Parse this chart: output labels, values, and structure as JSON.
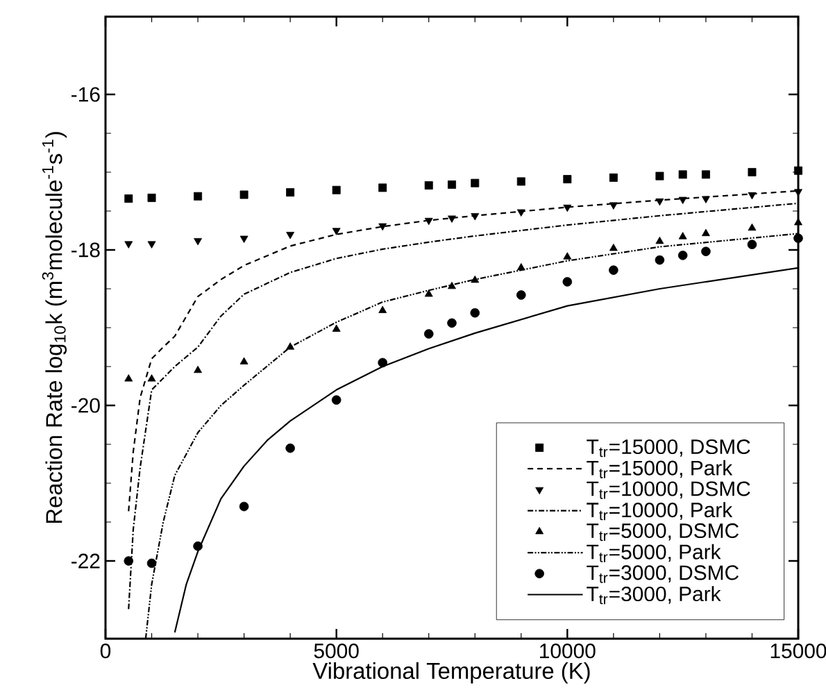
{
  "chart_data": {
    "type": "scatter",
    "xlabel": "Vibrational Temperature (K)",
    "ylabel": "Reaction Rate log$_{10}$k (m$^{3}$molecule$^{-1}$s$^{-1}$)",
    "xlim": [
      0,
      15000
    ],
    "ylim": [
      -23,
      -15
    ],
    "xticks": [
      0,
      5000,
      10000,
      15000
    ],
    "yticks": [
      -22,
      -20,
      -18,
      -16
    ],
    "grid": false,
    "legend": "bottom right",
    "series": [
      {
        "name": "T$_{tr}$=15000, DSMC",
        "marker": "square",
        "color": "#000000",
        "x": [
          500,
          1000,
          2000,
          3000,
          4000,
          5000,
          6000,
          7000,
          7500,
          8000,
          9000,
          10000,
          11000,
          12000,
          12500,
          13000,
          14000,
          15000
        ],
        "values": [
          -17.34,
          -17.33,
          -17.31,
          -17.29,
          -17.26,
          -17.23,
          -17.2,
          -17.17,
          -17.16,
          -17.14,
          -17.12,
          -17.09,
          -17.07,
          -17.05,
          -17.03,
          -17.03,
          -17.0,
          -16.98
        ]
      },
      {
        "name": "T$_{tr}$=15000, Park",
        "type": "line",
        "line_style": "dashed",
        "color": "#000000",
        "x": [
          500,
          600,
          750,
          1000,
          1250,
          1500,
          2000,
          2500,
          3000,
          4000,
          5000,
          6000,
          7000,
          8000,
          10000,
          12000,
          15000
        ],
        "values": [
          -21.36,
          -20.6,
          -19.9,
          -19.4,
          -19.25,
          -19.11,
          -18.6,
          -18.38,
          -18.2,
          -17.95,
          -17.8,
          -17.7,
          -17.62,
          -17.56,
          -17.45,
          -17.36,
          -17.24
        ]
      },
      {
        "name": "T$_{tr}$=10000, DSMC",
        "marker": "triangle-down",
        "color": "#000000",
        "x": [
          500,
          1000,
          2000,
          3000,
          4000,
          5000,
          6000,
          7000,
          7500,
          8000,
          9000,
          10000,
          11000,
          12000,
          12500,
          13000,
          14000,
          15000
        ],
        "values": [
          -17.92,
          -17.92,
          -17.88,
          -17.85,
          -17.8,
          -17.75,
          -17.69,
          -17.62,
          -17.59,
          -17.56,
          -17.51,
          -17.45,
          -17.42,
          -17.37,
          -17.35,
          -17.34,
          -17.29,
          -17.25
        ]
      },
      {
        "name": "T$_{tr}$=10000, Park",
        "type": "line",
        "line_style": "dashdot",
        "color": "#000000",
        "x": [
          500,
          600,
          750,
          1000,
          1500,
          2000,
          2500,
          3000,
          4000,
          5000,
          6000,
          7000,
          8000,
          10000,
          12000,
          15000
        ],
        "values": [
          -22.62,
          -21.6,
          -20.8,
          -19.8,
          -19.5,
          -19.25,
          -18.85,
          -18.57,
          -18.29,
          -18.11,
          -17.99,
          -17.9,
          -17.82,
          -17.68,
          -17.56,
          -17.4
        ]
      },
      {
        "name": "T$_{tr}$=5000, DSMC",
        "marker": "triangle",
        "color": "#000000",
        "x": [
          500,
          1000,
          2000,
          3000,
          4000,
          5000,
          6000,
          7000,
          7500,
          8000,
          9000,
          10000,
          11000,
          12000,
          12500,
          13000,
          14000,
          15000
        ],
        "values": [
          -19.66,
          -19.66,
          -19.55,
          -19.44,
          -19.25,
          -19.02,
          -18.78,
          -18.57,
          -18.47,
          -18.39,
          -18.23,
          -18.09,
          -17.98,
          -17.89,
          -17.83,
          -17.79,
          -17.72,
          -17.65
        ]
      },
      {
        "name": "T$_{tr}$=5000, Park",
        "type": "line",
        "line_style": "dashdotdot",
        "color": "#000000",
        "x": [
          870,
          1000,
          1250,
          1500,
          2000,
          2500,
          3000,
          4000,
          5000,
          6000,
          7000,
          8000,
          10000,
          12000,
          15000
        ],
        "values": [
          -23.0,
          -22.3,
          -21.5,
          -20.9,
          -20.35,
          -20.0,
          -19.74,
          -19.25,
          -18.93,
          -18.67,
          -18.52,
          -18.38,
          -18.14,
          -17.96,
          -17.79
        ]
      },
      {
        "name": "T$_{tr}$=3000, DSMC",
        "marker": "circle",
        "color": "#000000",
        "x": [
          500,
          1000,
          2000,
          3000,
          4000,
          5000,
          6000,
          7000,
          7500,
          8000,
          9000,
          10000,
          11000,
          12000,
          12500,
          13000,
          14000,
          15000
        ],
        "values": [
          -22.0,
          -22.03,
          -21.81,
          -21.3,
          -20.55,
          -19.93,
          -19.45,
          -19.08,
          -18.94,
          -18.81,
          -18.58,
          -18.41,
          -18.26,
          -18.13,
          -18.07,
          -18.02,
          -17.93,
          -17.85
        ]
      },
      {
        "name": "T$_{tr}$=3000, Park",
        "type": "line",
        "line_style": "solid",
        "color": "#000000",
        "x": [
          1500,
          1750,
          2000,
          2500,
          3000,
          3500,
          4000,
          5000,
          6000,
          7000,
          8000,
          10000,
          12000,
          15000
        ],
        "values": [
          -22.92,
          -22.3,
          -21.88,
          -21.2,
          -20.78,
          -20.45,
          -20.2,
          -19.8,
          -19.5,
          -19.27,
          -19.07,
          -18.72,
          -18.5,
          -18.23
        ]
      }
    ]
  }
}
